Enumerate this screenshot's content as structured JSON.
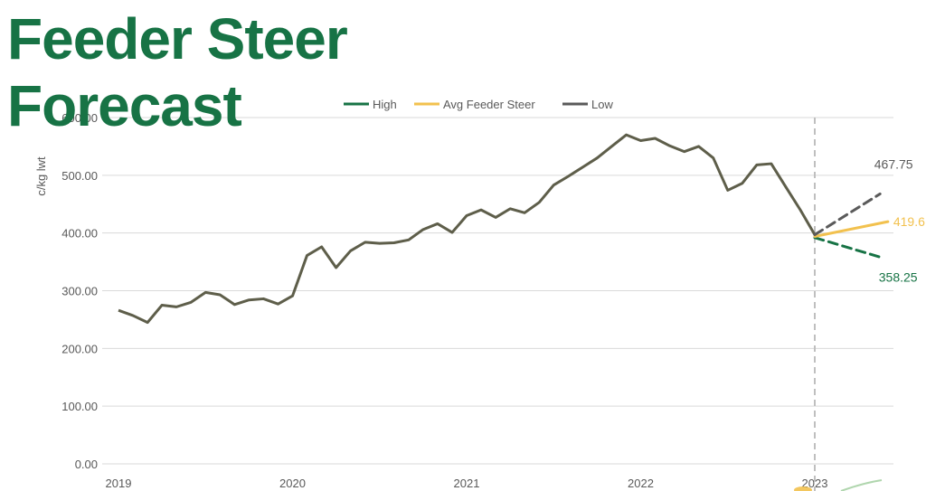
{
  "title_line1": "Feeder Steer",
  "title_line2": "Forecast",
  "chart_data": {
    "type": "line",
    "title": "Feeder Steer Forecast",
    "ylabel": "c/kg lwt",
    "ylim": [
      0,
      600
    ],
    "yticks": [
      "0.00",
      "100.00",
      "200.00",
      "300.00",
      "400.00",
      "500.00",
      "600.00"
    ],
    "xlim": [
      2019,
      2023.375
    ],
    "xticks": [
      "2019",
      "2020",
      "2021",
      "2022",
      "2023"
    ],
    "grid": true,
    "legend_position": "top",
    "divider_at": 2023.0,
    "history": {
      "name": "Low",
      "color": "#5e5e4a",
      "points": [
        [
          2019.0,
          266
        ],
        [
          2019.083,
          257
        ],
        [
          2019.167,
          245
        ],
        [
          2019.25,
          275
        ],
        [
          2019.333,
          272
        ],
        [
          2019.417,
          280
        ],
        [
          2019.5,
          297
        ],
        [
          2019.583,
          293
        ],
        [
          2019.667,
          276
        ],
        [
          2019.75,
          284
        ],
        [
          2019.833,
          286
        ],
        [
          2019.917,
          277
        ],
        [
          2020.0,
          291
        ],
        [
          2020.083,
          361
        ],
        [
          2020.167,
          376
        ],
        [
          2020.25,
          340
        ],
        [
          2020.333,
          369
        ],
        [
          2020.417,
          384
        ],
        [
          2020.5,
          382
        ],
        [
          2020.583,
          383
        ],
        [
          2020.667,
          388
        ],
        [
          2020.75,
          406
        ],
        [
          2020.833,
          416
        ],
        [
          2020.917,
          401
        ],
        [
          2021.0,
          430
        ],
        [
          2021.083,
          440
        ],
        [
          2021.167,
          427
        ],
        [
          2021.25,
          442
        ],
        [
          2021.333,
          435
        ],
        [
          2021.417,
          453
        ],
        [
          2021.5,
          483
        ],
        [
          2021.583,
          498
        ],
        [
          2021.667,
          514
        ],
        [
          2021.75,
          530
        ],
        [
          2021.833,
          550
        ],
        [
          2021.917,
          570
        ],
        [
          2022.0,
          560
        ],
        [
          2022.083,
          564
        ],
        [
          2022.167,
          551
        ],
        [
          2022.25,
          541
        ],
        [
          2022.333,
          550
        ],
        [
          2022.417,
          530
        ],
        [
          2022.5,
          474
        ],
        [
          2022.583,
          486
        ],
        [
          2022.667,
          518
        ],
        [
          2022.75,
          520
        ],
        [
          2022.833,
          480
        ],
        [
          2022.917,
          440
        ],
        [
          2023.0,
          397
        ]
      ]
    },
    "series": [
      {
        "name": "High",
        "color": "#177345",
        "dashed": true,
        "points": [
          [
            2023.0,
            392
          ],
          [
            2023.375,
            358.25
          ]
        ],
        "end_label": "358.25"
      },
      {
        "name": "Avg Feeder Steer",
        "color": "#f2c14e",
        "dashed": false,
        "points": [
          [
            2023.0,
            394
          ],
          [
            2023.42,
            419.6
          ]
        ],
        "end_label": "419.6"
      },
      {
        "name": "Low",
        "color": "#5a5a5a",
        "dashed": true,
        "points": [
          [
            2023.0,
            397
          ],
          [
            2023.375,
            467.75
          ]
        ],
        "end_label": "467.75"
      }
    ]
  }
}
